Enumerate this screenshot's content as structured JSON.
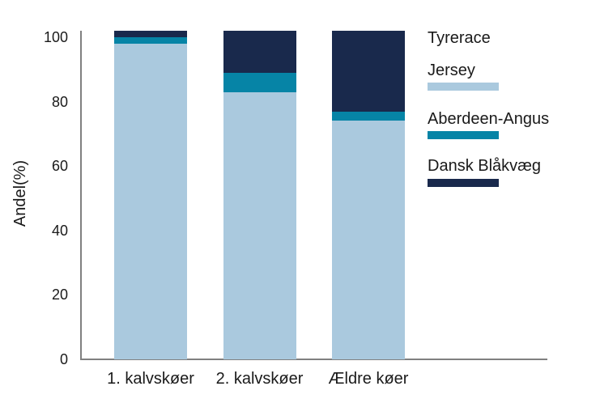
{
  "chart_data": {
    "type": "bar",
    "stacked": true,
    "title": "",
    "xlabel": "",
    "ylabel": "Andel(%)",
    "categories": [
      "1. kalvskøer",
      "2. kalvskøer",
      "Ældre køer"
    ],
    "series": [
      {
        "name": "Jersey",
        "color": "#aac9de",
        "values": [
          98,
          83,
          74
        ]
      },
      {
        "name": "Aberdeen-Angus",
        "color": "#0684a6",
        "values": [
          2,
          6,
          3
        ]
      },
      {
        "name": "Dansk Blåkvæg",
        "color": "#19294c",
        "values": [
          2,
          13,
          25
        ]
      }
    ],
    "legend_title": "Tyrerace",
    "legend_position": "right",
    "yticks": [
      0,
      20,
      40,
      60,
      80,
      100
    ],
    "ylim": [
      0,
      102
    ],
    "grid": false
  },
  "colors": {
    "axis": "#808080",
    "text": "#1a1a1a",
    "background": "#ffffff"
  }
}
